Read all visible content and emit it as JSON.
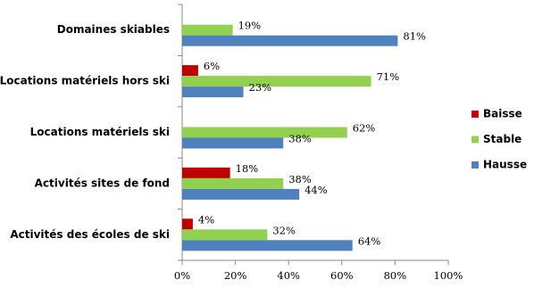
{
  "chart_data": {
    "type": "hbar",
    "categories": [
      "Domaines skiables",
      "Locations matériels hors ski",
      "Locations matériels ski",
      "Activités sites de fond",
      "Activités des écoles de ski"
    ],
    "series": [
      {
        "name": "Baisse",
        "color": "#c00000",
        "values": [
          null,
          6,
          null,
          18,
          4
        ],
        "value_labels": [
          null,
          "6%",
          null,
          "18%",
          "4%"
        ]
      },
      {
        "name": "Stable",
        "color": "#92d050",
        "values": [
          19,
          71,
          62,
          38,
          32
        ],
        "value_labels": [
          "19%",
          "71%",
          "62%",
          "38%",
          "32%"
        ]
      },
      {
        "name": "Hausse",
        "color": "#4f81bd",
        "values": [
          81,
          23,
          38,
          44,
          64
        ],
        "value_labels": [
          "81%",
          "23%",
          "38%",
          "44%",
          "64%"
        ]
      }
    ],
    "xlim": [
      0,
      100
    ],
    "xticks": [
      {
        "value": 0,
        "label": "0%"
      },
      {
        "value": 20,
        "label": "20%"
      },
      {
        "value": 40,
        "label": "40%"
      },
      {
        "value": 60,
        "label": "60%"
      },
      {
        "value": 80,
        "label": "80%"
      },
      {
        "value": 100,
        "label": "100%"
      }
    ],
    "legend": "right"
  }
}
